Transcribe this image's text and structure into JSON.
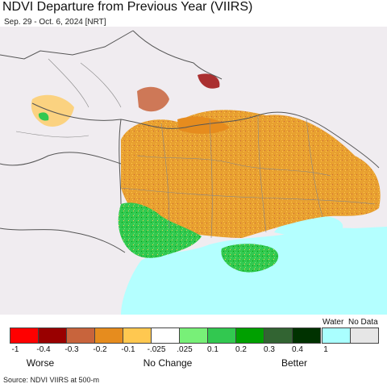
{
  "header": {
    "title": "NDVI Departure from Previous Year (VIIRS)",
    "subtitle": "Sep. 29 - Oct. 6, 2024 [NRT]"
  },
  "legend": {
    "water_label": "Water",
    "nodata_label": "No Data",
    "colors": [
      "#ff0000",
      "#990000",
      "#c8643c",
      "#e68c1e",
      "#ffc850",
      "#ffffff",
      "#78f078",
      "#32c850",
      "#00a000",
      "#326432",
      "#003200",
      "#aaffff",
      "#e6e6e6"
    ],
    "ticks": [
      "-1",
      "-0.4",
      "-0.3",
      "-0.2",
      "-0.1",
      "-.025",
      ".025",
      "0.1",
      "0.2",
      "0.3",
      "0.4",
      "1"
    ],
    "categories": [
      "Worse",
      "No Change",
      "Better"
    ]
  },
  "footer": {
    "source": "Source: NDVI VIIRS at 500-m"
  },
  "map_colors": {
    "background_land": "#f0ecf0",
    "sea": "#b4ffff",
    "border": "#555555"
  }
}
